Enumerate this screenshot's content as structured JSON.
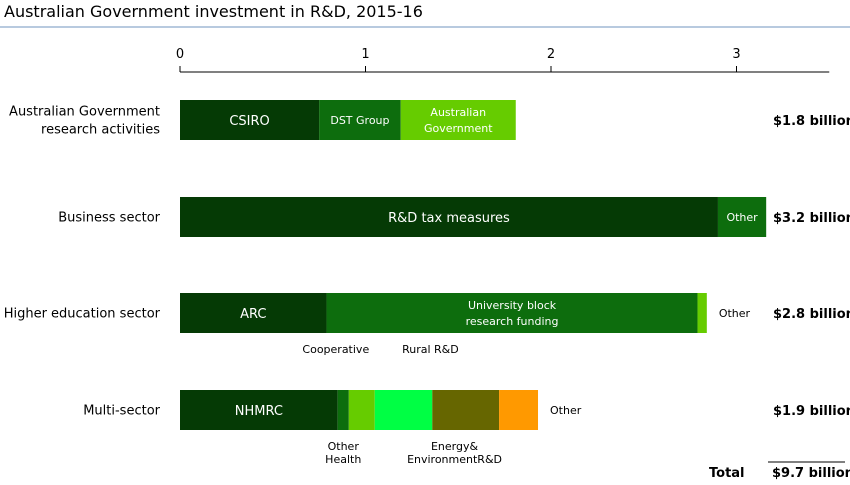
{
  "chart_data": {
    "type": "bar",
    "orientation": "horizontal",
    "stacked": true,
    "title": "Australian Government investment in R&D, 2015-16",
    "xlim": [
      0,
      3.5
    ],
    "xticks": [
      "0",
      "1",
      "2",
      "3"
    ],
    "grid": false,
    "categories": [
      {
        "label": "Australian Government research activities",
        "label_lines": [
          "Australian Government",
          "research activities"
        ],
        "total_label": "$1.8 billion",
        "segments": [
          {
            "name": "CSIRO",
            "lines": [
              "CSIRO"
            ],
            "value": 0.75,
            "color": "#053a05"
          },
          {
            "name": "DST Group",
            "lines": [
              "DST Group"
            ],
            "value": 0.44,
            "color": "#0d6d0d"
          },
          {
            "name": "Australian Government",
            "lines": [
              "Australian",
              "Government"
            ],
            "value": 0.62,
            "color": "#66cc00"
          }
        ]
      },
      {
        "label": "Business sector",
        "label_lines": [
          "Business sector"
        ],
        "total_label": "$3.2 billion",
        "segments": [
          {
            "name": "R&D tax  measures",
            "lines": [
              "R&D tax  measures"
            ],
            "value": 2.9,
            "color": "#053a05"
          },
          {
            "name": "Other",
            "lines": [
              "Other"
            ],
            "value": 0.26,
            "color": "#0d6d0d"
          }
        ]
      },
      {
        "label": "Higher education sector",
        "label_lines": [
          "Higher education sector"
        ],
        "total_label": "$2.8 billion",
        "segments": [
          {
            "name": "ARC",
            "lines": [
              "ARC"
            ],
            "value": 0.79,
            "color": "#053a05"
          },
          {
            "name": "University block research funding",
            "lines": [
              "University block",
              "research funding"
            ],
            "value": 2.0,
            "color": "#0d6d0d"
          },
          {
            "name": "Other",
            "lines": [],
            "value": 0.05,
            "color": "#66cc00"
          }
        ],
        "annotations": [
          {
            "text": "Other",
            "side": "right"
          },
          {
            "text": "Cooperative",
            "side": "below",
            "at": 0.84
          },
          {
            "text": "Rural R&D",
            "side": "below",
            "at": 1.35
          }
        ]
      },
      {
        "label": "Multi-sector",
        "label_lines": [
          "Multi-sector"
        ],
        "total_label": "$1.9 billion",
        "segments": [
          {
            "name": "NHMRC",
            "lines": [
              "NHMRC"
            ],
            "value": 0.85,
            "color": "#053a05"
          },
          {
            "name": "Other Health",
            "lines": [],
            "value": 0.06,
            "color": "#0d6d0d"
          },
          {
            "name": "",
            "lines": [],
            "value": 0.14,
            "color": "#66cc00"
          },
          {
            "name": "",
            "lines": [],
            "value": 0.31,
            "color": "#00ff44"
          },
          {
            "name": "Energy&Environment",
            "lines": [],
            "value": 0.36,
            "color": "#666600"
          },
          {
            "name": "",
            "lines": [],
            "value": 0.21,
            "color": "#ff9900"
          }
        ],
        "annotations": [
          {
            "text": "Other",
            "side": "right"
          },
          {
            "text": "Other",
            "side": "below",
            "at": 0.88,
            "row": 0
          },
          {
            "text": "Health",
            "side": "below",
            "at": 0.88,
            "row": 1
          },
          {
            "text": "Energy&",
            "side": "below",
            "at": 1.48,
            "row": 0
          },
          {
            "text": "EnvironmentR&D",
            "side": "below",
            "at": 1.48,
            "row": 1
          }
        ]
      }
    ],
    "total": {
      "label": "Total",
      "value_label": "$9.7 billion"
    }
  }
}
